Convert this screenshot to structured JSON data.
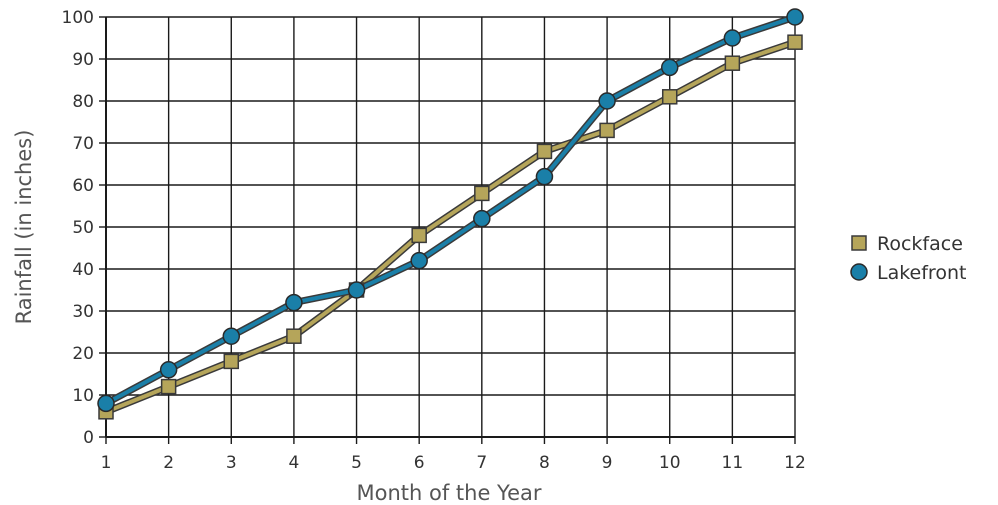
{
  "chart_data": {
    "type": "line",
    "title": "",
    "xlabel": "Month of the Year",
    "ylabel": "Rainfall (in inches)",
    "x": [
      1,
      2,
      3,
      4,
      5,
      6,
      7,
      8,
      9,
      10,
      11,
      12
    ],
    "xlim": [
      1,
      12
    ],
    "ylim": [
      0,
      100
    ],
    "yticks": [
      0,
      10,
      20,
      30,
      40,
      50,
      60,
      70,
      80,
      90,
      100
    ],
    "grid": true,
    "legend_position": "right",
    "series": [
      {
        "name": "Rockface",
        "marker": "square",
        "color": "#b5a55a",
        "values": [
          6,
          12,
          18,
          24,
          35,
          48,
          58,
          68,
          73,
          81,
          89,
          94
        ]
      },
      {
        "name": "Lakefront",
        "marker": "circle",
        "color": "#1a7fa8",
        "values": [
          8,
          16,
          24,
          32,
          35,
          42,
          52,
          62,
          80,
          88,
          95,
          100
        ]
      }
    ]
  }
}
